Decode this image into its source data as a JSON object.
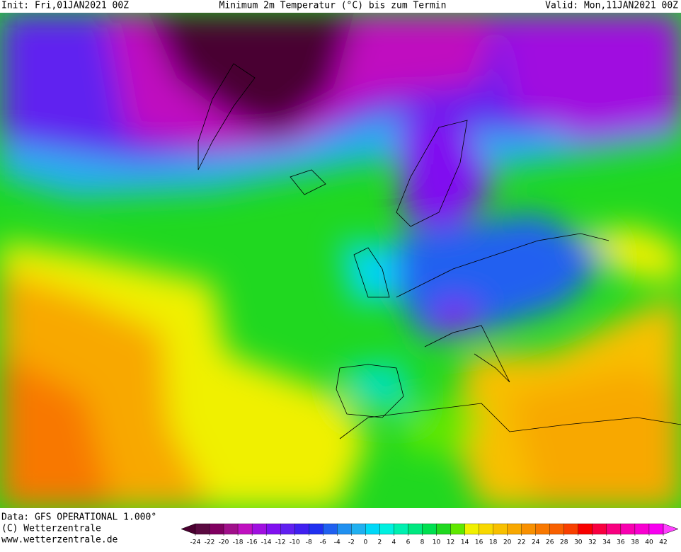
{
  "header": {
    "init": "Init: Fri,01JAN2021 00Z",
    "title": "Minimum 2m Temperatur (°C) bis zum Termin",
    "valid": "Valid: Mon,11JAN2021 00Z"
  },
  "footer": {
    "data": "Data: GFS OPERATIONAL 1.000°",
    "copyright": "(C) Wetterzentrale",
    "url": "www.wetterzentrale.de"
  },
  "colorbar": {
    "ticks": [
      -24,
      -22,
      -20,
      -18,
      -16,
      -14,
      -12,
      -10,
      -8,
      -6,
      -4,
      -2,
      0,
      2,
      4,
      6,
      8,
      10,
      12,
      14,
      16,
      18,
      20,
      22,
      24,
      26,
      28,
      30,
      32,
      34,
      36,
      38,
      40,
      42
    ],
    "colors": [
      "#4a0030",
      "#5a0a40",
      "#800060",
      "#a0108a",
      "#c010c0",
      "#a010e0",
      "#8010f0",
      "#6020f0",
      "#4020f0",
      "#2030f0",
      "#2060f0",
      "#2090f0",
      "#20b0f0",
      "#00d8f8",
      "#00f0e0",
      "#00f0b0",
      "#00e880",
      "#00e050",
      "#20d820",
      "#60e800",
      "#f0f000",
      "#f8d800",
      "#f8c000",
      "#f8a800",
      "#f89000",
      "#f87800",
      "#f86000",
      "#f84000",
      "#f80000",
      "#f80040",
      "#f80080",
      "#f800b0",
      "#f800d0",
      "#f800f0",
      "#ff40ff"
    ]
  }
}
